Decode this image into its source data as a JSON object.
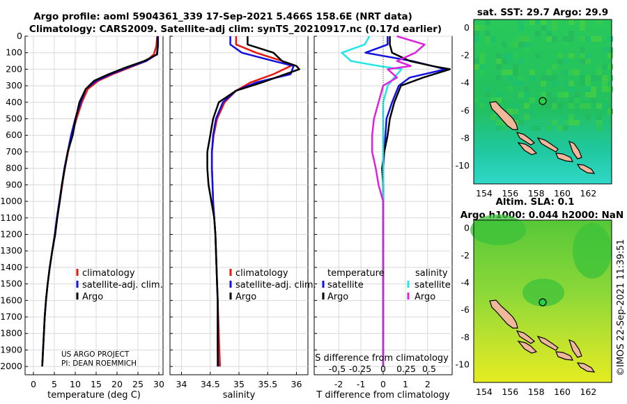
{
  "figure": {
    "title_line1": "Argo profile: aoml 5904361_339 17-Sep-2021 5.466S 158.6E (NRT data)",
    "title_line2": "Climatology: CARS2009. Satellite-adj clim: synTS_20210917.nc (0.17d earlier)",
    "credit_line1": "US ARGO PROJECT",
    "credit_line2": "PI: DEAN ROEMMICH",
    "timestamp": "©IMOS 22-Sep-2021 11:39:51",
    "colors": {
      "climatology": "#e8150f",
      "satellite_adj": "#1010e0",
      "argo": "#000000",
      "temp_diff": "#1010e0",
      "sal_diff_sat": "#22e6e6",
      "sal_diff_argo": "#dd22dd",
      "land": "#f0b89a"
    }
  },
  "chart_data": [
    {
      "type": "line",
      "panel": "temperature",
      "xlabel": "temperature (deg C)",
      "ylabel": "",
      "xlim": [
        -2,
        31
      ],
      "ylim": [
        2050,
        0
      ],
      "xticks": [
        "0",
        "5",
        "10",
        "15",
        "20",
        "25",
        "30"
      ],
      "yticks": [
        "0",
        "100",
        "200",
        "300",
        "400",
        "500",
        "600",
        "700",
        "800",
        "900",
        "1000",
        "1100",
        "1200",
        "1300",
        "1400",
        "1500",
        "1600",
        "1700",
        "1800",
        "1900",
        "2000"
      ],
      "legend": [
        "climatology",
        "satellite-adj. clim.",
        "Argo"
      ],
      "series": [
        {
          "name": "climatology",
          "x": [
            29.6,
            29.4,
            28.8,
            27,
            23,
            19,
            15.5,
            13,
            11.6,
            10.3,
            9.2,
            8.3,
            7.5,
            6.9,
            6.3,
            5.7,
            5.2,
            4.5,
            3.9,
            3.4,
            3.0,
            2.7,
            2.5,
            2.3,
            2.1
          ],
          "y": [
            0,
            60,
            110,
            150,
            190,
            230,
            270,
            320,
            400,
            500,
            600,
            700,
            800,
            900,
            1000,
            1100,
            1200,
            1300,
            1400,
            1500,
            1600,
            1700,
            1800,
            1900,
            2000
          ]
        },
        {
          "name": "satellite-adj. clim.",
          "x": [
            29.8,
            29.8,
            29.5,
            27,
            22.5,
            18.5,
            15,
            12.5,
            11.3,
            10,
            9,
            8.2,
            7.4,
            6.8,
            6.2,
            5.6,
            5.1,
            4.5,
            3.9,
            3.4,
            3.0,
            2.7,
            2.5,
            2.3,
            2.1
          ],
          "y": [
            0,
            60,
            110,
            150,
            190,
            230,
            270,
            320,
            400,
            500,
            600,
            700,
            800,
            900,
            1000,
            1100,
            1200,
            1300,
            1400,
            1500,
            1600,
            1700,
            1800,
            1900,
            2000
          ]
        },
        {
          "name": "Argo",
          "x": [
            29.7,
            29.7,
            29.6,
            26.5,
            22,
            18,
            14.5,
            12.5,
            11,
            10.1,
            9.4,
            8.2,
            7.5,
            6.8,
            6.3,
            5.7,
            5.2,
            4.5,
            3.9,
            3.4,
            3.0,
            2.7,
            2.5,
            2.3,
            2.1
          ],
          "y": [
            0,
            60,
            110,
            150,
            190,
            230,
            270,
            320,
            400,
            500,
            600,
            700,
            800,
            900,
            1000,
            1100,
            1200,
            1300,
            1400,
            1500,
            1600,
            1700,
            1800,
            1900,
            2000
          ]
        }
      ]
    },
    {
      "type": "line",
      "panel": "salinity",
      "xlabel": "salinity",
      "xlim": [
        33.8,
        36.2
      ],
      "ylim": [
        2050,
        0
      ],
      "xticks": [
        "34",
        "34.5",
        "35",
        "35.5",
        "36"
      ],
      "legend": [
        "climatology",
        "satellite-adj. clim.",
        "Argo"
      ],
      "series": [
        {
          "name": "climatology",
          "x": [
            34.95,
            34.95,
            35.3,
            35.75,
            35.9,
            35.6,
            35.2,
            34.95,
            34.75,
            34.62,
            34.56,
            34.53,
            34.53,
            34.54,
            34.55,
            34.57,
            34.59,
            34.6,
            34.61,
            34.62,
            34.63,
            34.64,
            34.65,
            34.66,
            34.67
          ],
          "y": [
            0,
            50,
            100,
            150,
            180,
            230,
            280,
            330,
            400,
            500,
            600,
            700,
            800,
            900,
            1000,
            1100,
            1200,
            1300,
            1400,
            1500,
            1600,
            1700,
            1800,
            1900,
            2000
          ]
        },
        {
          "name": "satellite-adj. clim.",
          "x": [
            34.85,
            34.85,
            35.05,
            35.6,
            35.95,
            35.9,
            35.3,
            34.95,
            34.72,
            34.6,
            34.55,
            34.53,
            34.53,
            34.54,
            34.55,
            34.57,
            34.59,
            34.6,
            34.61,
            34.62,
            34.63,
            34.63,
            34.63,
            34.63,
            34.64
          ],
          "y": [
            0,
            50,
            100,
            150,
            180,
            230,
            280,
            330,
            400,
            500,
            600,
            700,
            800,
            900,
            1000,
            1100,
            1200,
            1300,
            1400,
            1500,
            1600,
            1700,
            1800,
            1900,
            2000
          ]
        },
        {
          "name": "Argo",
          "x": [
            35.15,
            35.15,
            35.6,
            35.75,
            36.0,
            36.05,
            35.4,
            34.95,
            34.65,
            34.55,
            34.5,
            34.45,
            34.45,
            34.47,
            34.52,
            34.57,
            34.59,
            34.6,
            34.61,
            34.62,
            34.63,
            34.63,
            34.63,
            34.63,
            34.63
          ],
          "y": [
            0,
            50,
            100,
            150,
            180,
            200,
            280,
            330,
            400,
            500,
            600,
            700,
            800,
            900,
            1000,
            1100,
            1200,
            1300,
            1400,
            1500,
            1600,
            1700,
            1800,
            1900,
            2000
          ]
        }
      ]
    },
    {
      "type": "line",
      "panel": "difference",
      "xlabel": "T difference from climatology",
      "xlabel2": "S difference from climatology",
      "xlim": [
        -3.1,
        3.1
      ],
      "ylim": [
        2050,
        0
      ],
      "xticks": [
        "-2",
        "-1",
        "0",
        "1",
        "2"
      ],
      "xticks2": [
        "-0.5",
        "-0.25",
        "0",
        "0.25",
        "0.5"
      ],
      "legend_temperature_title": "temperature",
      "legend_salinity_title": "salinity",
      "legend_temperature": [
        "satellite",
        "Argo"
      ],
      "legend_salinity": [
        "satellite",
        "Argo"
      ],
      "series": [
        {
          "name": "temperature satellite",
          "x": [
            0.2,
            0.2,
            -0.8,
            1.3,
            2.2,
            2.8,
            1.2,
            0.7,
            0.4,
            0.15,
            0.1,
            0.05,
            0.0,
            0.0,
            0.0,
            0.0,
            0.0,
            0.0,
            0.0,
            0.0,
            0.0,
            0.0,
            0.0,
            0.0,
            0.0
          ],
          "y": [
            0,
            50,
            100,
            150,
            180,
            200,
            250,
            300,
            400,
            500,
            600,
            700,
            800,
            900,
            1000,
            1100,
            1200,
            1300,
            1400,
            1500,
            1600,
            1700,
            1800,
            1900,
            2000
          ]
        },
        {
          "name": "temperature Argo",
          "x": [
            0.3,
            0.3,
            0.4,
            1.2,
            2.2,
            3.0,
            1.8,
            0.8,
            0.5,
            0.3,
            0.2,
            0.05,
            -0.05,
            0.0,
            0.0,
            0.0,
            0.0,
            0.0,
            0.0,
            0.0,
            0.0,
            0.0,
            0.0,
            0.0,
            0.0
          ],
          "y": [
            0,
            50,
            100,
            150,
            180,
            200,
            250,
            300,
            400,
            500,
            600,
            700,
            800,
            900,
            1000,
            1100,
            1200,
            1300,
            1400,
            1500,
            1600,
            1700,
            1800,
            1900,
            2000
          ]
        },
        {
          "name": "salinity satellite",
          "x": [
            -0.15,
            -0.2,
            -0.45,
            -0.35,
            -0.05,
            0.2,
            0.12,
            0.05,
            0.0,
            0.0,
            0.0,
            0.0,
            0.0,
            0.0,
            0.0,
            0.0,
            0.0,
            0.0,
            0.0,
            0.0,
            0.0,
            0.0,
            0.0,
            0.0,
            0.0
          ],
          "y": [
            0,
            50,
            100,
            150,
            180,
            200,
            250,
            300,
            400,
            500,
            600,
            700,
            800,
            900,
            1000,
            1100,
            1200,
            1300,
            1400,
            1500,
            1600,
            1700,
            1800,
            1900,
            2000
          ]
        },
        {
          "name": "salinity Argo",
          "x": [
            0.15,
            0.45,
            0.35,
            0.15,
            0.3,
            0.05,
            0.15,
            0.0,
            -0.05,
            -0.1,
            -0.12,
            -0.12,
            -0.08,
            -0.05,
            0.0,
            0.0,
            0.0,
            0.0,
            0.0,
            0.0,
            0.0,
            0.0,
            0.0,
            0.0,
            0.0
          ],
          "y": [
            0,
            50,
            100,
            150,
            180,
            200,
            250,
            300,
            400,
            500,
            600,
            700,
            800,
            900,
            1000,
            1100,
            1200,
            1300,
            1400,
            1500,
            1600,
            1700,
            1800,
            1900,
            2000
          ]
        }
      ]
    },
    {
      "type": "heatmap",
      "panel": "sst_map",
      "title": "sat. SST: 29.7  Argo: 29.9",
      "xticks": [
        "154",
        "156",
        "158",
        "160",
        "162"
      ],
      "yticks": [
        "0",
        "-2",
        "-4",
        "-6",
        "-8",
        "-10"
      ],
      "xlim": [
        153.2,
        163.8
      ],
      "ylim": [
        -11.3,
        0.6
      ],
      "float_position": {
        "lon": 158.6,
        "lat": -5.466
      }
    },
    {
      "type": "heatmap",
      "panel": "sla_map",
      "title_line1": "Altim. SLA: 0.1",
      "title_line2": "Argo h1000: 0.044 h2000: NaN",
      "xticks": [
        "154",
        "156",
        "158",
        "160",
        "162"
      ],
      "yticks": [
        "0",
        "-2",
        "-4",
        "-6",
        "-8",
        "-10"
      ],
      "xlim": [
        153.2,
        163.8
      ],
      "ylim": [
        -11.3,
        0.6
      ],
      "float_position": {
        "lon": 158.6,
        "lat": -5.466
      }
    }
  ]
}
